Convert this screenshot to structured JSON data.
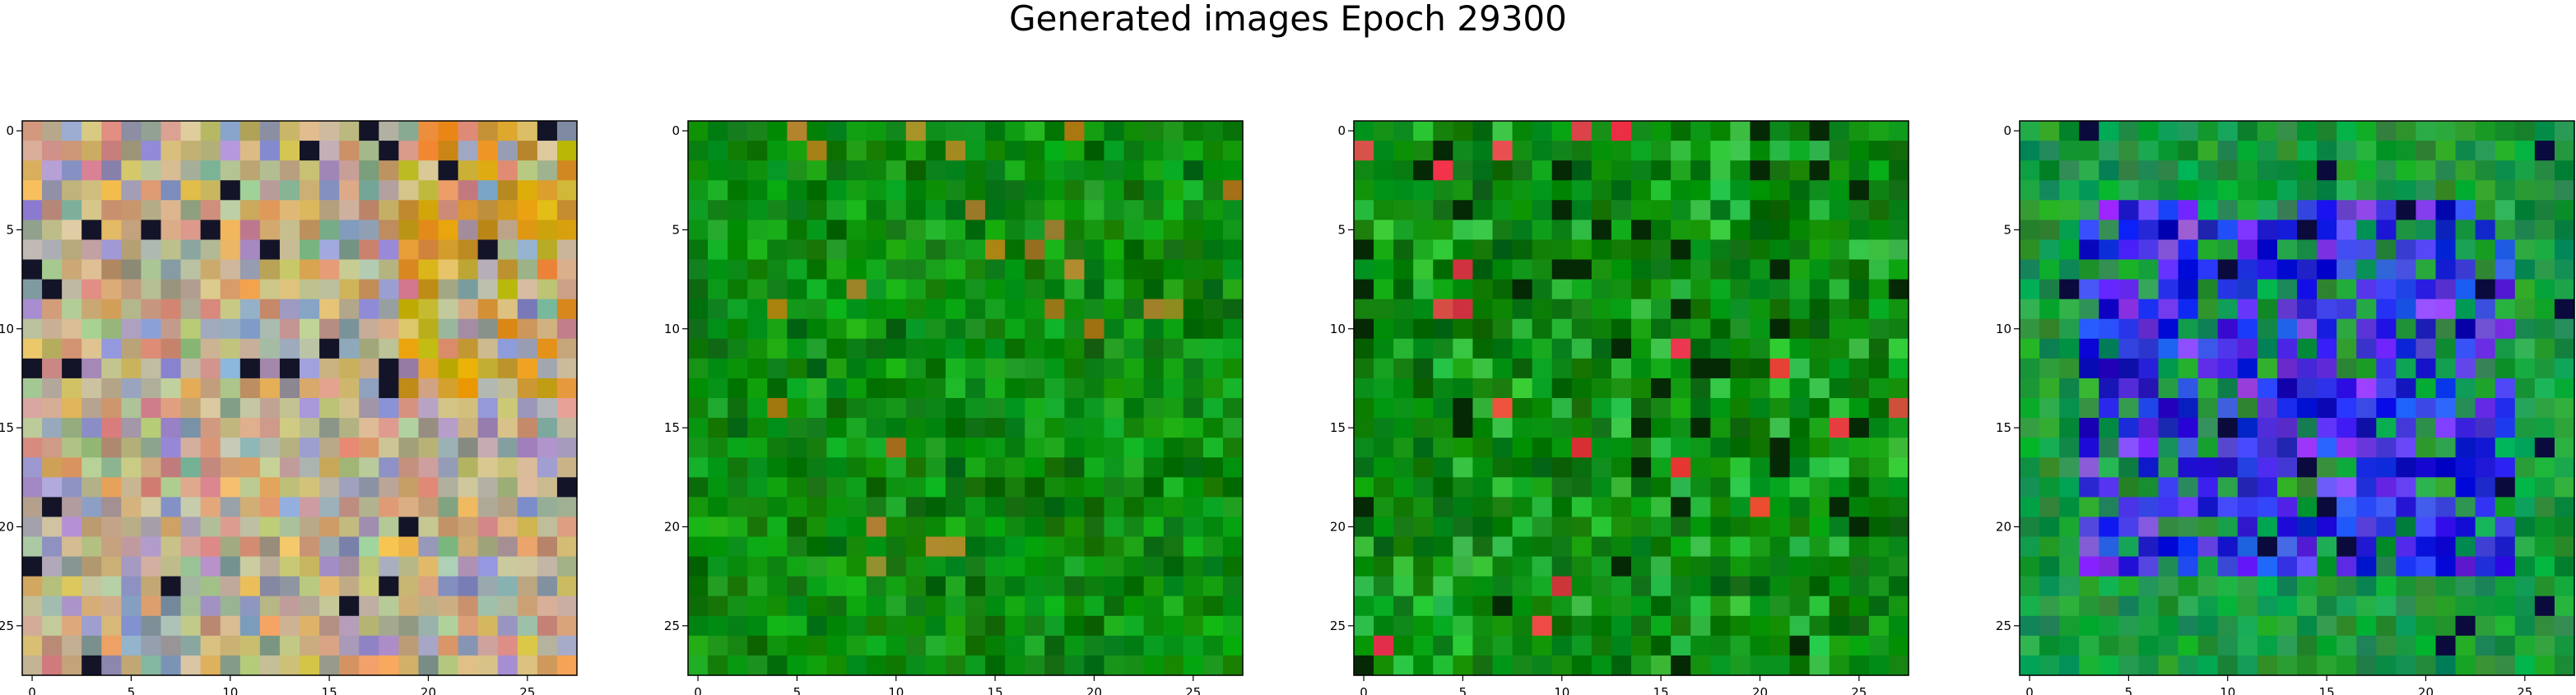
{
  "figure": {
    "title": "Generated images Epoch 29300"
  },
  "chart_data": [
    {
      "type": "heatmap",
      "grid_size": 28,
      "xlim": [
        0,
        27
      ],
      "ylim": [
        27,
        0
      ],
      "xticks": [
        0,
        5,
        10,
        15,
        20,
        25
      ],
      "yticks": [
        0,
        5,
        10,
        15,
        20,
        25
      ],
      "palette": {
        "base": "#c8b48c",
        "alt": [
          "#a0a0c8",
          "#c8a070",
          "#8ca08c",
          "#e0b060",
          "#b0c0a0",
          "#d09080",
          "#9090b8"
        ],
        "accent": "#d4a020"
      },
      "style": "multicolor"
    },
    {
      "type": "heatmap",
      "grid_size": 28,
      "xlim": [
        0,
        27
      ],
      "ylim": [
        27,
        0
      ],
      "xticks": [
        0,
        5,
        10,
        15,
        20,
        25
      ],
      "yticks": [
        0,
        5,
        10,
        15,
        20,
        25
      ],
      "palette": {
        "base": "#0a8a10",
        "alt": [
          "#046a08",
          "#12a018",
          "#0e7a0c",
          "#1aaa20"
        ],
        "accent": "#a08020"
      },
      "style": "green"
    },
    {
      "type": "heatmap",
      "grid_size": 28,
      "xlim": [
        0,
        27
      ],
      "ylim": [
        27,
        0
      ],
      "xticks": [
        0,
        5,
        10,
        15,
        20,
        25
      ],
      "yticks": [
        0,
        5,
        10,
        15,
        20,
        25
      ],
      "palette": {
        "base": "#0a8a10",
        "alt": [
          "#046a08",
          "#12a018",
          "#0e7a0c",
          "#30c040"
        ],
        "accent": "#e04040"
      },
      "style": "green-dark"
    },
    {
      "type": "heatmap",
      "grid_size": 28,
      "xlim": [
        0,
        27
      ],
      "ylim": [
        27,
        0
      ],
      "xticks": [
        0,
        5,
        10,
        15,
        20,
        25
      ],
      "yticks": [
        0,
        5,
        10,
        15,
        20,
        25
      ],
      "palette": {
        "base": "#1a9a40",
        "alt": [
          "#2020e0",
          "#5030e0",
          "#3050f0",
          "#1010c0"
        ],
        "accent": "#8040f0"
      },
      "style": "blue-center"
    }
  ]
}
